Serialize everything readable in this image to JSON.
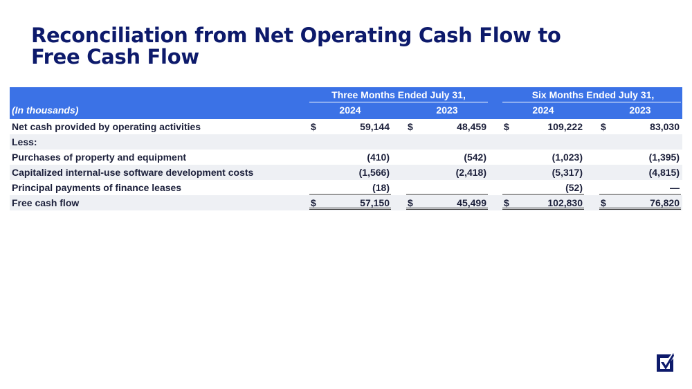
{
  "title": {
    "line1": "Reconciliation from Net Operating Cash Flow to",
    "line2": "Free Cash Flow"
  },
  "table": {
    "unit_label": "(In thousands)",
    "group_headers": [
      "Three Months Ended July 31,",
      "Six Months Ended July 31,"
    ],
    "year_headers": [
      "2024",
      "2023",
      "2024",
      "2023"
    ],
    "rows": [
      {
        "label": "Net cash provided by operating activities",
        "cells": [
          {
            "cur": "$",
            "val": "59,144"
          },
          {
            "cur": "$",
            "val": "48,459"
          },
          {
            "cur": "$",
            "val": "109,222"
          },
          {
            "cur": "$",
            "val": "83,030"
          }
        ]
      },
      {
        "label": "Less:",
        "cells": [
          {
            "cur": "",
            "val": ""
          },
          {
            "cur": "",
            "val": ""
          },
          {
            "cur": "",
            "val": ""
          },
          {
            "cur": "",
            "val": ""
          }
        ]
      },
      {
        "label": "Purchases of property and equipment",
        "cells": [
          {
            "cur": "",
            "val": "(410)"
          },
          {
            "cur": "",
            "val": "(542)"
          },
          {
            "cur": "",
            "val": "(1,023)"
          },
          {
            "cur": "",
            "val": "(1,395)"
          }
        ]
      },
      {
        "label": "Capitalized internal-use software development costs",
        "cells": [
          {
            "cur": "",
            "val": "(1,566)"
          },
          {
            "cur": "",
            "val": "(2,418)"
          },
          {
            "cur": "",
            "val": "(5,317)"
          },
          {
            "cur": "",
            "val": "(4,815)"
          }
        ]
      },
      {
        "label": "Principal payments of finance leases",
        "cells": [
          {
            "cur": "",
            "val": "(18)"
          },
          {
            "cur": "",
            "val": ""
          },
          {
            "cur": "",
            "val": "(52)"
          },
          {
            "cur": "",
            "val": "—"
          }
        ]
      },
      {
        "label": "Free cash flow",
        "cells": [
          {
            "cur": "$",
            "val": "57,150"
          },
          {
            "cur": "$",
            "val": "45,499"
          },
          {
            "cur": "$",
            "val": "102,830"
          },
          {
            "cur": "$",
            "val": "76,820"
          }
        ]
      }
    ]
  },
  "colors": {
    "title": "#0d1a6b",
    "header_bg": "#3b72e6",
    "row_shade": "#eef0f4",
    "logo": "#0d1a6b"
  },
  "logo_icon": "checkmark-logo-icon"
}
